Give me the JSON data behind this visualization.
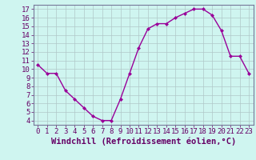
{
  "x": [
    0,
    1,
    2,
    3,
    4,
    5,
    6,
    7,
    8,
    9,
    10,
    11,
    12,
    13,
    14,
    15,
    16,
    17,
    18,
    19,
    20,
    21,
    22,
    23
  ],
  "y": [
    10.5,
    9.5,
    9.5,
    7.5,
    6.5,
    5.5,
    4.5,
    4.0,
    4.0,
    6.5,
    9.5,
    12.5,
    14.7,
    15.3,
    15.3,
    16.0,
    16.5,
    17.0,
    17.0,
    16.3,
    14.5,
    11.5,
    11.5,
    9.5
  ],
  "line_color": "#990099",
  "marker": "D",
  "marker_size": 2.5,
  "background_color": "#cff5f0",
  "grid_color": "#b0c8c8",
  "xlabel": "Windchill (Refroidissement éolien,°C)",
  "xlabel_color": "#660066",
  "ylabel_ticks": [
    4,
    5,
    6,
    7,
    8,
    9,
    10,
    11,
    12,
    13,
    14,
    15,
    16,
    17
  ],
  "xlim": [
    -0.5,
    23.5
  ],
  "ylim": [
    3.5,
    17.5
  ],
  "xtick_labels": [
    "0",
    "1",
    "2",
    "3",
    "4",
    "5",
    "6",
    "7",
    "8",
    "9",
    "10",
    "11",
    "12",
    "13",
    "14",
    "15",
    "16",
    "17",
    "18",
    "19",
    "20",
    "21",
    "22",
    "23"
  ],
  "tick_color": "#660066",
  "tick_fontsize": 6.5,
  "xlabel_fontsize": 7.5,
  "linewidth": 1.0
}
